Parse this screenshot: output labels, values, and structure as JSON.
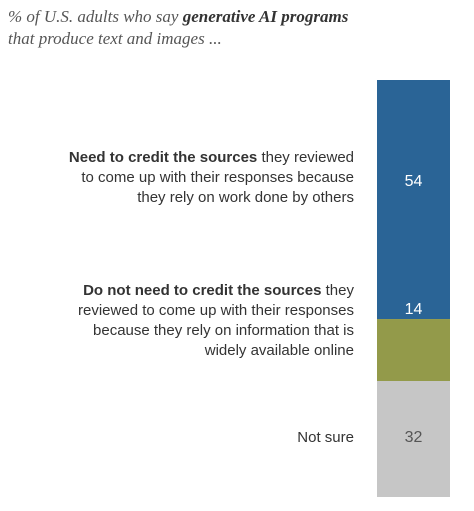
{
  "title": {
    "prefix": "% of U.S. adults who say ",
    "emphasis": "generative AI programs",
    "line2": "that produce text and images ..."
  },
  "rows": [
    {
      "bold": "Need to credit the sources",
      "rest_line1": " they reviewed",
      "rest_line2": "to come up with their responses because",
      "rest_line3": "they rely on work done by others",
      "rest_line4": ""
    },
    {
      "bold": "Do not need to credit the sources",
      "rest_line1": " they",
      "rest_line2": "reviewed to come up with their responses",
      "rest_line3": "because they rely on information that is",
      "rest_line4": "widely available online"
    },
    {
      "bold": "",
      "rest_line1": "Not sure",
      "rest_line2": "",
      "rest_line3": "",
      "rest_line4": ""
    }
  ],
  "chart_data": {
    "type": "bar",
    "orientation": "stacked-vertical",
    "categories": [
      "Need to credit the sources they reviewed to come up with their responses because they rely on work done by others",
      "Do not need to credit the sources they reviewed to come up with their responses because they rely on information that is widely available online",
      "Not sure"
    ],
    "values": [
      54,
      14,
      32
    ],
    "labels": [
      "54",
      "14",
      "32"
    ],
    "colors": [
      "#2a6496",
      "#939a4a",
      "#c6c6c6"
    ],
    "value_text_colors": [
      "#ffffff",
      "#ffffff",
      "#555555"
    ],
    "ylim": [
      0,
      100
    ]
  }
}
